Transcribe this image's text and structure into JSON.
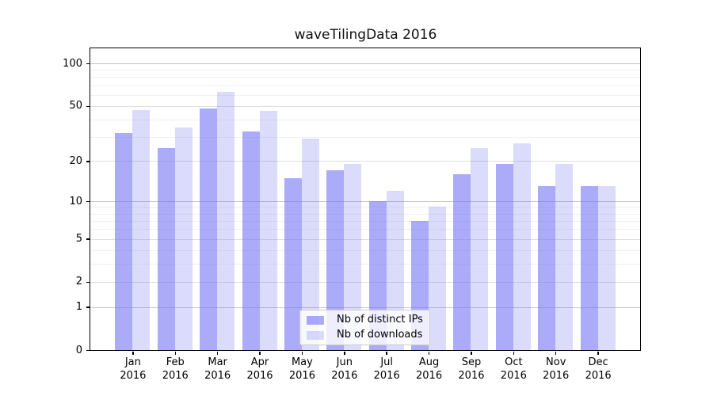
{
  "title": "waveTilingData 2016",
  "colors": {
    "bar_distinct_ips": "rgba(115,115,245,0.60)",
    "bar_downloads": "rgba(115,115,245,0.26)",
    "grid_decade": "#c6c6c6",
    "grid_major": "#dedede",
    "grid_minor": "#f0f0f0",
    "spine": "#000000"
  },
  "legend": {
    "items": [
      "Nb of distinct IPs",
      "Nb of downloads"
    ],
    "position": "lower center"
  },
  "chart_data": {
    "type": "bar",
    "title": "waveTilingData 2016",
    "xlabel": "",
    "ylabel": "",
    "yscale": "log1p",
    "grid": true,
    "legend_position": "lower center",
    "categories": [
      "Jan\n2016",
      "Feb\n2016",
      "Mar\n2016",
      "Apr\n2016",
      "May\n2016",
      "Jun\n2016",
      "Jul\n2016",
      "Aug\n2016",
      "Sep\n2016",
      "Oct\n2016",
      "Nov\n2016",
      "Dec\n2016"
    ],
    "series": [
      {
        "name": "Nb of distinct IPs",
        "color": "rgba(115,115,245,0.60)",
        "values": [
          32,
          25,
          48,
          33,
          15,
          17,
          10,
          7,
          16,
          19,
          13,
          13
        ]
      },
      {
        "name": "Nb of downloads",
        "color": "rgba(115,115,245,0.26)",
        "values": [
          47,
          35,
          63,
          46,
          29,
          19,
          12,
          9,
          25,
          27,
          19,
          13
        ]
      }
    ],
    "yticks": [
      0,
      1,
      2,
      5,
      10,
      20,
      50,
      100
    ],
    "yticks_minor": [
      3,
      4,
      6,
      7,
      8,
      9,
      30,
      40,
      60,
      70,
      80,
      90
    ],
    "ylim": [
      0,
      128
    ]
  }
}
